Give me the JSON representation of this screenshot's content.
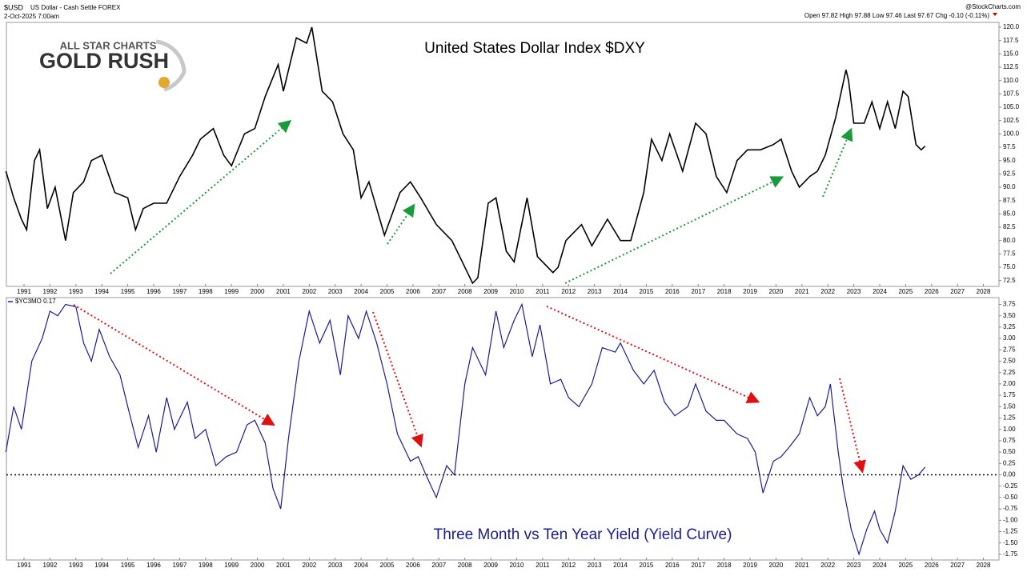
{
  "header": {
    "symbol": "$USD",
    "name": "US Dollar - Cash Settle FOREX",
    "date": "2-Oct-2025 7:00am",
    "quote": "Open 97.82  High 97.88  Low 97.46  Last 97.67  Chg -0.10 (-0.11%)",
    "source": "@StockCharts.com",
    "logo_top": "ALL STAR CHARTS",
    "logo_main": "GOLD RUSH"
  },
  "chart_data": [
    {
      "type": "line",
      "title": "United States Dollar Index $DXY",
      "x": [
        1990.3,
        1990.6,
        1990.9,
        1991.1,
        1991.4,
        1991.6,
        1991.9,
        1992.2,
        1992.6,
        1992.9,
        1993.3,
        1993.6,
        1994.0,
        1994.5,
        1995.0,
        1995.3,
        1995.6,
        1996.0,
        1996.5,
        1997.0,
        1997.5,
        1997.8,
        1998.3,
        1998.7,
        1999.0,
        1999.5,
        1999.9,
        2000.3,
        2000.8,
        2001.0,
        2001.5,
        2001.9,
        2002.1,
        2002.5,
        2002.9,
        2003.3,
        2003.7,
        2004.0,
        2004.3,
        2004.9,
        2005.5,
        2005.9,
        2006.3,
        2006.9,
        2007.5,
        2007.9,
        2008.3,
        2008.5,
        2008.9,
        2009.2,
        2009.6,
        2009.9,
        2010.4,
        2010.8,
        2011.4,
        2011.6,
        2011.9,
        2012.5,
        2012.9,
        2013.5,
        2014.0,
        2014.4,
        2014.9,
        2015.2,
        2015.6,
        2015.9,
        2016.4,
        2016.9,
        2017.3,
        2017.7,
        2018.1,
        2018.5,
        2018.9,
        2019.4,
        2019.9,
        2020.2,
        2020.6,
        2020.9,
        2021.3,
        2021.6,
        2021.9,
        2022.3,
        2022.7,
        2022.8,
        2023.0,
        2023.4,
        2023.7,
        2024.0,
        2024.3,
        2024.6,
        2024.9,
        2025.1,
        2025.4,
        2025.6,
        2025.75
      ],
      "series": [
        {
          "name": "$DXY",
          "color": "#000000",
          "values": [
            93,
            88,
            84,
            82,
            95,
            97,
            86,
            90,
            80,
            89,
            91,
            95,
            96,
            89,
            88,
            82,
            86,
            87,
            87,
            92,
            96,
            99,
            101,
            96,
            94,
            100,
            101,
            107,
            113,
            108,
            118,
            117,
            120,
            108,
            106,
            100,
            97,
            88,
            91,
            81,
            89,
            91,
            88,
            83,
            80,
            76,
            72,
            73,
            87,
            88,
            78,
            76,
            88,
            77,
            74,
            75,
            80,
            83,
            79,
            84,
            80,
            80,
            89,
            99,
            95,
            100,
            93,
            102,
            100,
            92,
            89,
            95,
            97,
            97,
            98,
            99,
            93,
            90,
            92,
            93,
            96,
            103,
            112,
            110,
            102,
            102,
            106,
            101,
            106,
            101,
            108,
            107,
            98,
            97,
            97.7
          ]
        }
      ],
      "xlim": [
        1990.32,
        2028.6
      ],
      "xticks": [
        1991,
        1992,
        1993,
        1994,
        1995,
        1996,
        1997,
        1998,
        1999,
        2000,
        2001,
        2002,
        2003,
        2004,
        2005,
        2006,
        2007,
        2008,
        2009,
        2010,
        2011,
        2012,
        2013,
        2014,
        2015,
        2016,
        2017,
        2018,
        2019,
        2020,
        2021,
        2022,
        2023,
        2024,
        2025,
        2026,
        2027,
        2028
      ],
      "ylim": [
        71.4,
        120.9
      ],
      "yticks": [
        72.5,
        {
          "value": 75,
          "label": "75.0"
        },
        77.5,
        {
          "value": 80,
          "label": "80.0"
        },
        82.5,
        {
          "value": 85,
          "label": "85.0"
        },
        87.5,
        {
          "value": 90,
          "label": "90.0"
        },
        92.5,
        {
          "value": 95,
          "label": "95.0"
        },
        97.5,
        {
          "value": 100,
          "label": "100.0"
        },
        102.5,
        {
          "value": 105,
          "label": "105.0"
        },
        107.5,
        {
          "value": 110,
          "label": "110.0"
        },
        112.5,
        {
          "value": 115,
          "label": "115.0"
        },
        117.5,
        {
          "value": 120,
          "label": "120.0"
        }
      ],
      "grid": false
    },
    {
      "type": "line",
      "title": "Three Month vs Ten Year Yield (Yield Curve)",
      "x": [
        1990.3,
        1990.6,
        1990.9,
        1991.3,
        1991.7,
        1992.0,
        1992.3,
        1992.6,
        1993.0,
        1993.3,
        1993.6,
        1993.9,
        1994.3,
        1994.7,
        1995.0,
        1995.4,
        1995.8,
        1996.1,
        1996.5,
        1996.8,
        1997.3,
        1997.6,
        1998.0,
        1998.4,
        1998.8,
        1999.2,
        1999.6,
        1999.9,
        2000.3,
        2000.6,
        2000.9,
        2001.2,
        2001.6,
        2002.0,
        2002.4,
        2002.8,
        2003.2,
        2003.5,
        2003.9,
        2004.2,
        2004.6,
        2005.0,
        2005.4,
        2005.9,
        2006.2,
        2006.5,
        2006.9,
        2007.3,
        2007.6,
        2008.0,
        2008.3,
        2008.8,
        2009.2,
        2009.5,
        2009.9,
        2010.2,
        2010.6,
        2010.9,
        2011.3,
        2011.7,
        2012.0,
        2012.4,
        2012.9,
        2013.3,
        2013.8,
        2014.0,
        2014.5,
        2014.9,
        2015.3,
        2015.7,
        2016.1,
        2016.6,
        2016.9,
        2017.3,
        2017.7,
        2018.0,
        2018.5,
        2018.9,
        2019.2,
        2019.5,
        2019.9,
        2020.2,
        2020.5,
        2020.9,
        2021.3,
        2021.6,
        2021.9,
        2022.1,
        2022.4,
        2022.6,
        2022.9,
        2023.2,
        2023.5,
        2023.8,
        2024.0,
        2024.3,
        2024.6,
        2024.9,
        2025.2,
        2025.5,
        2025.75
      ],
      "series": [
        {
          "name": "$YC3MO 0.17",
          "color": "#1c1c8f",
          "values": [
            0.5,
            1.5,
            1.0,
            2.5,
            3.0,
            3.6,
            3.5,
            3.75,
            3.7,
            2.9,
            2.5,
            3.2,
            2.6,
            2.2,
            1.5,
            0.6,
            1.3,
            0.5,
            1.7,
            1.0,
            1.6,
            0.8,
            1.0,
            0.2,
            0.4,
            0.5,
            1.1,
            1.2,
            0.7,
            -0.3,
            -0.75,
            0.8,
            2.5,
            3.6,
            2.9,
            3.4,
            2.2,
            3.5,
            3.0,
            3.6,
            2.9,
            2.0,
            0.9,
            0.3,
            0.4,
            0.0,
            -0.5,
            0.2,
            0.0,
            2.0,
            2.8,
            2.2,
            3.6,
            2.8,
            3.4,
            3.75,
            2.6,
            3.3,
            2.0,
            2.1,
            1.7,
            1.5,
            2.0,
            2.8,
            2.7,
            2.9,
            2.3,
            2.0,
            2.3,
            1.6,
            1.3,
            1.5,
            2.0,
            1.4,
            1.2,
            1.2,
            0.9,
            0.8,
            0.5,
            -0.4,
            0.3,
            0.4,
            0.6,
            0.9,
            1.7,
            1.3,
            1.5,
            2.0,
            0.5,
            -0.3,
            -1.2,
            -1.75,
            -1.2,
            -0.8,
            -1.2,
            -1.5,
            -0.8,
            0.2,
            -0.1,
            0.0,
            0.17
          ]
        }
      ],
      "reference_line": 0,
      "xlim": [
        1990.32,
        2028.6
      ],
      "xticks": [
        1991,
        1992,
        1993,
        1994,
        1995,
        1996,
        1997,
        1998,
        1999,
        2000,
        2001,
        2002,
        2003,
        2004,
        2005,
        2006,
        2007,
        2008,
        2009,
        2010,
        2011,
        2012,
        2013,
        2014,
        2015,
        2016,
        2017,
        2018,
        2019,
        2020,
        2021,
        2022,
        2023,
        2024,
        2025,
        2026,
        2027,
        2028
      ],
      "ylim": [
        -1.875,
        3.9
      ],
      "yticks": [
        -1.75,
        {
          "value": -1.5,
          "label": "-1.50"
        },
        -1.25,
        {
          "value": -1,
          "label": "-1.00"
        },
        -0.75,
        {
          "value": -0.5,
          "label": "-0.50"
        },
        -0.25,
        {
          "value": 0,
          "label": "0.00"
        },
        0.25,
        {
          "value": 0.5,
          "label": "0.50"
        },
        0.75,
        {
          "value": 1,
          "label": "1.00"
        },
        1.25,
        {
          "value": 1.5,
          "label": "1.50"
        },
        1.75,
        {
          "value": 2,
          "label": "2.00"
        },
        2.25,
        {
          "value": 2.5,
          "label": "2.50"
        },
        2.75,
        {
          "value": 3,
          "label": "3.00"
        },
        3.25,
        {
          "value": 3.5,
          "label": "3.50"
        },
        3.75
      ],
      "grid": false
    }
  ]
}
